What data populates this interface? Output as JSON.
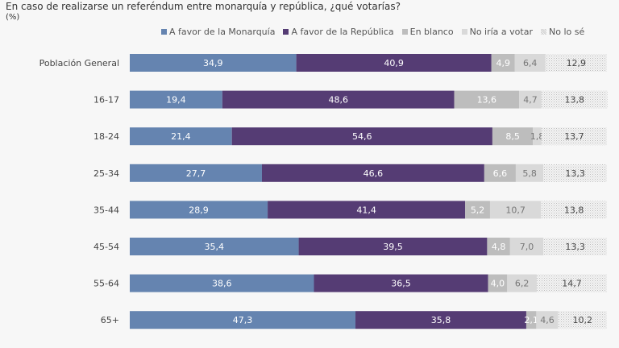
{
  "chart_data": {
    "type": "bar",
    "orientation": "horizontal",
    "stacked": true,
    "title": "En caso de realizarse un referéndum entre monarquía y república, ¿qué votarías?",
    "subtitle": "(%)",
    "legend_position": "top",
    "grid": false,
    "xlim": [
      0,
      100
    ],
    "categories": [
      "Población General",
      "16-17",
      "18-24",
      "25-34",
      "35-44",
      "45-54",
      "55-64",
      "65+"
    ],
    "series": [
      {
        "name": "A favor de la Monarquía",
        "color": "#6584b0",
        "label_color": "#ffffff",
        "values": [
          34.9,
          19.4,
          21.4,
          27.7,
          28.9,
          35.4,
          38.6,
          47.3
        ]
      },
      {
        "name": "A favor de la República",
        "color": "#553c74",
        "label_color": "#ffffff",
        "values": [
          40.9,
          48.6,
          54.6,
          46.6,
          41.4,
          39.5,
          36.5,
          35.8
        ]
      },
      {
        "name": "En blanco",
        "color": "#bdbdbd",
        "label_color": "#ffffff",
        "values": [
          4.9,
          13.6,
          8.5,
          6.6,
          5.2,
          4.8,
          4.0,
          2.1
        ]
      },
      {
        "name": "No iría a votar",
        "color": "#d9d9d9",
        "label_color": "#777777",
        "values": [
          6.4,
          4.7,
          1.8,
          5.8,
          10.7,
          7.0,
          6.2,
          4.6
        ]
      },
      {
        "name": "No lo sé",
        "color": "dotted",
        "label_color": "#444444",
        "values": [
          12.9,
          13.8,
          13.7,
          13.3,
          13.8,
          13.3,
          14.7,
          10.2
        ]
      }
    ]
  }
}
